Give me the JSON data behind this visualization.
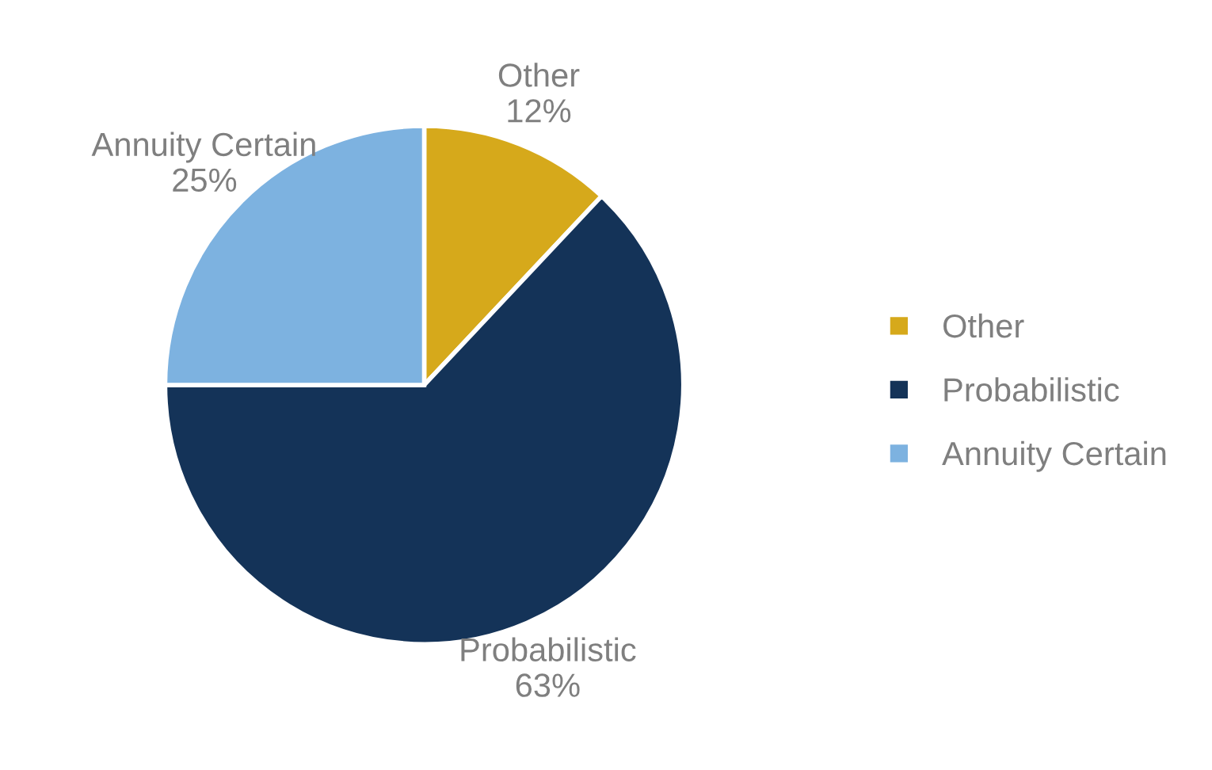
{
  "chart_data": {
    "type": "pie",
    "categories": [
      "Other",
      "Probabilistic",
      "Annuity Certain"
    ],
    "values": [
      12,
      63,
      25
    ],
    "colors": [
      "#d6a91b",
      "#143358",
      "#7db2e0"
    ],
    "value_labels": [
      "12%",
      "63%",
      "25%"
    ],
    "legend": "right"
  }
}
